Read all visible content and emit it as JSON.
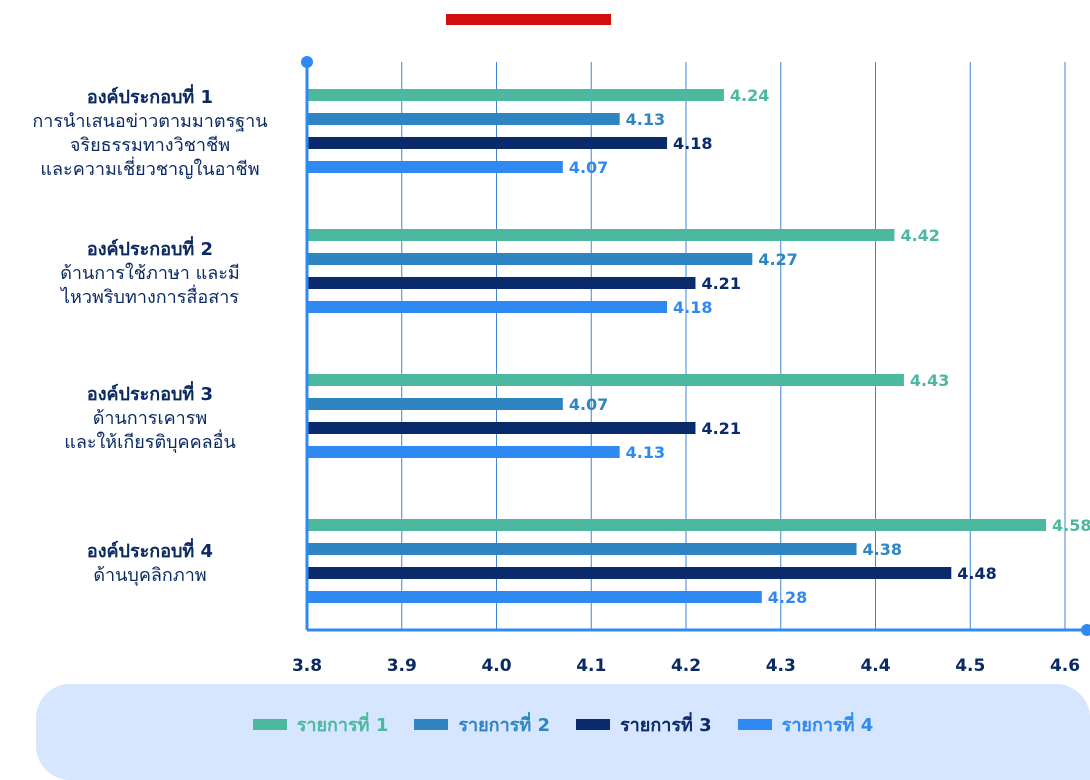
{
  "chart_data": {
    "type": "bar",
    "orientation": "horizontal",
    "xlim": [
      3.8,
      4.6
    ],
    "x_ticks": [
      "3.8",
      "3.9",
      "4.0",
      "4.1",
      "4.2",
      "4.3",
      "4.4",
      "4.5",
      "4.6"
    ],
    "grid": true,
    "legend_position": "bottom",
    "categories": [
      [
        "องค์ประกอบที่ 1",
        "การนำเสนอข่าวตามมาตรฐาน",
        "จริยธรรมทางวิชาชีพ",
        "และความเชี่ยวชาญในอาชีพ"
      ],
      [
        "องค์ประกอบที่ 2",
        "ด้านการใช้ภาษา และมี",
        "ไหวพริบทางการสื่อสาร"
      ],
      [
        "องค์ประกอบที่ 3",
        "ด้านการเคารพ",
        "และให้เกียรติบุคคลอื่น"
      ],
      [
        "องค์ประกอบที่ 4",
        "ด้านบุคลิกภาพ"
      ]
    ],
    "series": [
      {
        "name": "รายการที่ 1",
        "color": "#4db8a0",
        "values": [
          4.24,
          4.42,
          4.43,
          4.58
        ]
      },
      {
        "name": "รายการที่ 2",
        "color": "#2f85c2",
        "values": [
          4.13,
          4.27,
          4.07,
          4.38
        ]
      },
      {
        "name": "รายการที่ 3",
        "color": "#0b2a6b",
        "values": [
          4.18,
          4.21,
          4.21,
          4.48
        ]
      },
      {
        "name": "รายการที่ 4",
        "color": "#2e8af2",
        "values": [
          4.07,
          4.18,
          4.13,
          4.28
        ]
      }
    ],
    "axis_color": "#2e8af2",
    "grid_color": "#3f86d8"
  },
  "legend": {
    "items": [
      {
        "label": "รายการที่ 1",
        "color": "#4db8a0"
      },
      {
        "label": "รายการที่ 2",
        "color": "#2f85c2"
      },
      {
        "label": "รายการที่ 3",
        "color": "#0b2a6b"
      },
      {
        "label": "รายการที่ 4",
        "color": "#2e8af2"
      }
    ]
  }
}
